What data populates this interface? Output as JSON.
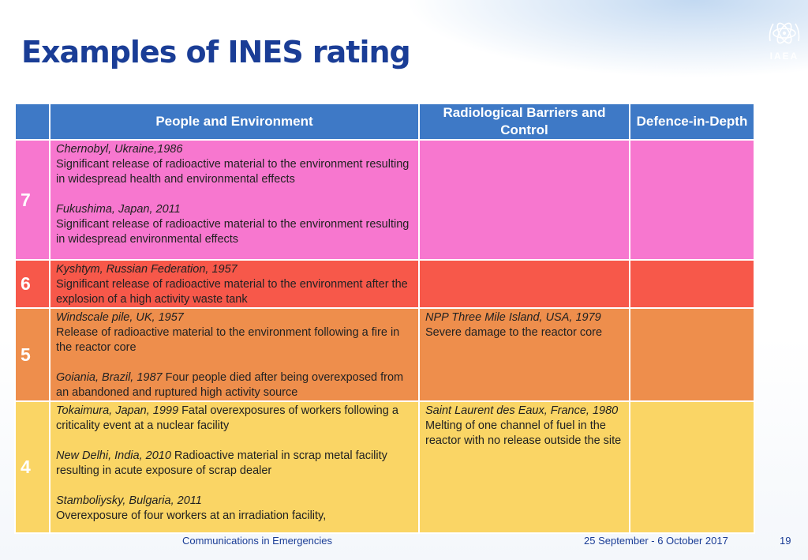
{
  "slide": {
    "title": "Examples of INES rating",
    "logo_text": "IAEA",
    "footer_left": "Communications in Emergencies",
    "footer_date": "25 September - 6 October 2017",
    "page_number": "19"
  },
  "table": {
    "headers": [
      "",
      "People and Environment",
      "Radiological Barriers and Control",
      "Defence-in-Depth"
    ],
    "rows": [
      {
        "level": "7",
        "people": [
          {
            "event": "Chernobyl, Ukraine,1986",
            "desc": "Significant release of radioactive material to the environment resulting in widespread health and environmental effects"
          },
          {
            "event": "Fukushima, Japan, 2011",
            "desc": "Significant release of radioactive material to the environment resulting in widespread environmental effects"
          }
        ],
        "barriers": [],
        "defence": []
      },
      {
        "level": "6",
        "people": [
          {
            "event": "Kyshtym, Russian Federation, 1957",
            "desc": "Significant release of radioactive material to the environment after the explosion of a high activity waste tank"
          }
        ],
        "barriers": [],
        "defence": []
      },
      {
        "level": "5",
        "people": [
          {
            "event": "Windscale pile, UK, 1957",
            "desc": "Release of radioactive material to the environment following a fire in the reactor core"
          },
          {
            "event": "Goiania, Brazil, 1987",
            "desc": " Four people died after being overexposed from an abandoned and ruptured high activity source"
          }
        ],
        "barriers": [
          {
            "event": "NPP Three Mile Island, USA, 1979",
            "desc": "Severe damage to the reactor core"
          }
        ],
        "defence": []
      },
      {
        "level": "4",
        "people": [
          {
            "event": "Tokaimura, Japan, 1999",
            "desc": " Fatal overexposures of workers following a criticality event at a nuclear facility"
          },
          {
            "event": "New Delhi, India, 2010",
            "desc": " Radioactive material in scrap metal facility resulting in acute exposure of scrap dealer"
          },
          {
            "event": "Stamboliysky, Bulgaria, 2011",
            "desc": "Overexposure of four workers at an irradiation facility,"
          }
        ],
        "barriers": [
          {
            "event": "Saint Laurent des Eaux, France, 1980",
            "desc": " Melting of one channel of fuel in the reactor with no release outside the site"
          }
        ],
        "defence": []
      }
    ]
  },
  "colors": {
    "title": "#1a3d96",
    "header": "#3e79c6",
    "level7": "#f777cf",
    "level6": "#f7584a",
    "level5": "#ee8e4c",
    "level4": "#fad565"
  }
}
